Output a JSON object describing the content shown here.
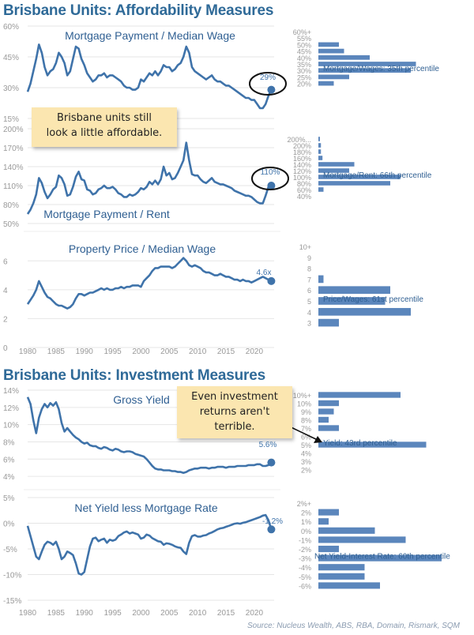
{
  "titles": {
    "affordability": "Brisbane Units: Affordability Measures",
    "investment": "Brisbane Units: Investment Measures"
  },
  "notes": {
    "affordable": "Brisbane units still\nlook a little affordable.",
    "investment": "Even investment\nreturns aren't\nterrible."
  },
  "source": "Source: Nucleus Wealth, ABS, RBA, Domain, Rismark, SQM",
  "colors": {
    "line": "#3f73aa",
    "bar": "#5b86bc",
    "title": "#2f6a98",
    "grid": "#e6e6e6",
    "axis_text": "#999999",
    "note_bg": "#fbe6b0"
  },
  "chart_data": [
    {
      "type": "line",
      "title": "Mortgage Payment / Median Wage",
      "ytick_labels": [
        "15%",
        "30%",
        "45%",
        "60%"
      ],
      "ylim": [
        15,
        60
      ],
      "x": [
        1980,
        1980.5,
        1981,
        1981.5,
        1982,
        1982.5,
        1983,
        1983.5,
        1984,
        1984.5,
        1985,
        1985.5,
        1986,
        1986.5,
        1987,
        1987.5,
        1988,
        1988.5,
        1989,
        1989.5,
        1990,
        1990.5,
        1991,
        1991.5,
        1992,
        1992.5,
        1993,
        1993.5,
        1994,
        1994.5,
        1995,
        1995.5,
        1996,
        1996.5,
        1997,
        1997.5,
        1998,
        1998.5,
        1999,
        1999.5,
        2000,
        2000.5,
        2001,
        2001.5,
        2002,
        2002.5,
        2003,
        2003.5,
        2004,
        2004.5,
        2005,
        2005.5,
        2006,
        2006.5,
        2007,
        2007.5,
        2008,
        2008.5,
        2009,
        2009.5,
        2010,
        2010.5,
        2011,
        2011.5,
        2012,
        2012.5,
        2013,
        2013.5,
        2014,
        2014.5,
        2015,
        2015.5,
        2016,
        2016.5,
        2017,
        2017.5,
        2018,
        2018.5,
        2019,
        2019.5,
        2020,
        2020.5,
        2021,
        2021.5,
        2022,
        2022.5,
        2023
      ],
      "values": [
        28,
        32,
        38,
        44,
        51,
        47,
        40,
        36,
        38,
        39,
        42,
        47,
        45,
        42,
        36,
        38,
        44,
        50,
        49,
        44,
        41,
        37,
        35,
        33,
        34,
        36,
        36,
        37,
        35,
        36,
        36,
        35,
        34,
        33,
        31,
        30,
        30,
        29,
        29,
        30,
        34,
        33,
        35,
        37,
        36,
        38,
        36,
        38,
        41,
        40,
        40,
        38,
        39,
        41,
        42,
        45,
        50,
        47,
        40,
        38,
        37,
        36,
        35,
        34,
        35,
        36,
        34,
        33,
        33,
        32,
        31,
        31,
        30,
        29,
        28,
        27,
        26,
        25,
        25,
        24,
        24,
        22,
        20,
        20,
        22,
        26,
        29
      ],
      "label": "29%"
    },
    {
      "type": "line",
      "title": "Mortgage Payment / Rent",
      "ytick_labels": [
        "50%",
        "80%",
        "110%",
        "140%",
        "170%",
        "200%"
      ],
      "ylim": [
        50,
        200
      ],
      "x": [
        1980,
        1980.5,
        1981,
        1981.5,
        1982,
        1982.5,
        1983,
        1983.5,
        1984,
        1984.5,
        1985,
        1985.5,
        1986,
        1986.5,
        1987,
        1987.5,
        1988,
        1988.5,
        1989,
        1989.5,
        1990,
        1990.5,
        1991,
        1991.5,
        1992,
        1992.5,
        1993,
        1993.5,
        1994,
        1994.5,
        1995,
        1995.5,
        1996,
        1996.5,
        1997,
        1997.5,
        1998,
        1998.5,
        1999,
        1999.5,
        2000,
        2000.5,
        2001,
        2001.5,
        2002,
        2002.5,
        2003,
        2003.5,
        2004,
        2004.5,
        2005,
        2005.5,
        2006,
        2006.5,
        2007,
        2007.5,
        2008,
        2008.5,
        2009,
        2009.5,
        2010,
        2010.5,
        2011,
        2011.5,
        2012,
        2012.5,
        2013,
        2013.5,
        2014,
        2014.5,
        2015,
        2015.5,
        2016,
        2016.5,
        2017,
        2017.5,
        2018,
        2018.5,
        2019,
        2019.5,
        2020,
        2020.5,
        2021,
        2021.5,
        2022,
        2022.5,
        2023
      ],
      "values": [
        65,
        72,
        82,
        96,
        122,
        114,
        100,
        90,
        96,
        104,
        108,
        126,
        122,
        112,
        94,
        96,
        108,
        124,
        132,
        120,
        118,
        104,
        102,
        96,
        98,
        104,
        106,
        110,
        106,
        106,
        108,
        104,
        98,
        96,
        92,
        92,
        96,
        94,
        96,
        100,
        106,
        104,
        108,
        116,
        112,
        118,
        112,
        120,
        140,
        126,
        130,
        120,
        122,
        130,
        140,
        150,
        178,
        150,
        128,
        126,
        126,
        120,
        116,
        114,
        118,
        122,
        116,
        114,
        112,
        112,
        110,
        108,
        106,
        102,
        100,
        98,
        96,
        94,
        94,
        92,
        88,
        84,
        82,
        82,
        94,
        108,
        110
      ],
      "label": "110%"
    },
    {
      "type": "line",
      "title": "Property Price / Median Wage",
      "ytick_labels": [
        "0",
        "2",
        "4",
        "6"
      ],
      "ylim": [
        0,
        7
      ],
      "x": [
        1980,
        1980.5,
        1981,
        1981.5,
        1982,
        1982.5,
        1983,
        1983.5,
        1984,
        1984.5,
        1985,
        1985.5,
        1986,
        1986.5,
        1987,
        1987.5,
        1988,
        1988.5,
        1989,
        1989.5,
        1990,
        1990.5,
        1991,
        1991.5,
        1992,
        1992.5,
        1993,
        1993.5,
        1994,
        1994.5,
        1995,
        1995.5,
        1996,
        1996.5,
        1997,
        1997.5,
        1998,
        1998.5,
        1999,
        1999.5,
        2000,
        2000.5,
        2001,
        2001.5,
        2002,
        2002.5,
        2003,
        2003.5,
        2004,
        2004.5,
        2005,
        2005.5,
        2006,
        2006.5,
        2007,
        2007.5,
        2008,
        2008.5,
        2009,
        2009.5,
        2010,
        2010.5,
        2011,
        2011.5,
        2012,
        2012.5,
        2013,
        2013.5,
        2014,
        2014.5,
        2015,
        2015.5,
        2016,
        2016.5,
        2017,
        2017.5,
        2018,
        2018.5,
        2019,
        2019.5,
        2020,
        2020.5,
        2021,
        2021.5,
        2022,
        2022.5,
        2023
      ],
      "values": [
        3.0,
        3.3,
        3.6,
        4.0,
        4.6,
        4.2,
        3.8,
        3.5,
        3.4,
        3.2,
        3.0,
        2.9,
        2.9,
        2.8,
        2.7,
        2.8,
        3.0,
        3.4,
        3.7,
        3.7,
        3.6,
        3.7,
        3.8,
        3.8,
        3.9,
        4.0,
        4.1,
        4.0,
        4.1,
        4.0,
        4.0,
        4.1,
        4.1,
        4.2,
        4.1,
        4.2,
        4.2,
        4.3,
        4.3,
        4.3,
        4.2,
        4.6,
        4.8,
        5.0,
        5.3,
        5.5,
        5.5,
        5.6,
        5.6,
        5.6,
        5.6,
        5.5,
        5.6,
        5.8,
        6.0,
        6.2,
        6.0,
        5.7,
        5.6,
        5.7,
        5.6,
        5.5,
        5.3,
        5.2,
        5.2,
        5.1,
        5.0,
        5.0,
        5.1,
        5.0,
        4.9,
        4.9,
        4.8,
        4.7,
        4.7,
        4.6,
        4.7,
        4.6,
        4.6,
        4.5,
        4.6,
        4.7,
        4.8,
        4.9,
        4.8,
        4.7,
        4.6
      ],
      "label": "4.6x"
    },
    {
      "type": "line",
      "title": "Gross Yield",
      "ytick_labels": [
        "4%",
        "6%",
        "8%",
        "10%",
        "12%",
        "14%"
      ],
      "ylim": [
        3,
        14
      ],
      "x": [
        1980,
        1980.5,
        1981,
        1981.5,
        1982,
        1982.5,
        1983,
        1983.5,
        1984,
        1984.5,
        1985,
        1985.5,
        1986,
        1986.5,
        1987,
        1987.5,
        1988,
        1988.5,
        1989,
        1989.5,
        1990,
        1990.5,
        1991,
        1991.5,
        1992,
        1992.5,
        1993,
        1993.5,
        1994,
        1994.5,
        1995,
        1995.5,
        1996,
        1996.5,
        1997,
        1997.5,
        1998,
        1998.5,
        1999,
        1999.5,
        2000,
        2000.5,
        2001,
        2001.5,
        2002,
        2002.5,
        2003,
        2003.5,
        2004,
        2004.5,
        2005,
        2005.5,
        2006,
        2006.5,
        2007,
        2007.5,
        2008,
        2008.5,
        2009,
        2009.5,
        2010,
        2010.5,
        2011,
        2011.5,
        2012,
        2012.5,
        2013,
        2013.5,
        2014,
        2014.5,
        2015,
        2015.5,
        2016,
        2016.5,
        2017,
        2017.5,
        2018,
        2018.5,
        2019,
        2019.5,
        2020,
        2020.5,
        2021,
        2021.5,
        2022,
        2022.5,
        2023
      ],
      "values": [
        13.2,
        12.4,
        10.5,
        9.0,
        10.8,
        11.8,
        12.4,
        12.0,
        12.5,
        12.2,
        12.6,
        11.8,
        10.2,
        9.2,
        9.6,
        9.2,
        8.8,
        8.5,
        8.3,
        8.0,
        7.8,
        7.9,
        7.6,
        7.5,
        7.5,
        7.3,
        7.2,
        7.4,
        7.3,
        7.1,
        7.0,
        7.2,
        7.1,
        6.9,
        6.8,
        6.9,
        6.9,
        6.8,
        6.6,
        6.5,
        6.4,
        6.3,
        6.0,
        5.6,
        5.2,
        4.9,
        4.8,
        4.8,
        4.7,
        4.7,
        4.7,
        4.6,
        4.6,
        4.5,
        4.5,
        4.4,
        4.5,
        4.7,
        4.8,
        4.9,
        4.9,
        5.0,
        5.0,
        5.0,
        4.9,
        5.0,
        5.0,
        5.1,
        5.1,
        5.1,
        5.0,
        5.1,
        5.1,
        5.1,
        5.2,
        5.2,
        5.2,
        5.2,
        5.3,
        5.3,
        5.3,
        5.4,
        5.4,
        5.2,
        5.2,
        5.3,
        5.6
      ],
      "label": "5.6%"
    },
    {
      "type": "line",
      "title": "Net Yield less Mortgage Rate",
      "xtick_labels": [
        "1980",
        "1985",
        "1990",
        "1995",
        "2000",
        "2005",
        "2010",
        "2015",
        "2020"
      ],
      "ytick_labels": [
        "-15%",
        "-10%",
        "-5%",
        "0%",
        "5%"
      ],
      "ylim": [
        -15,
        5
      ],
      "x": [
        1980,
        1980.5,
        1981,
        1981.5,
        1982,
        1982.5,
        1983,
        1983.5,
        1984,
        1984.5,
        1985,
        1985.5,
        1986,
        1986.5,
        1987,
        1987.5,
        1988,
        1988.5,
        1989,
        1989.5,
        1990,
        1990.5,
        1991,
        1991.5,
        1992,
        1992.5,
        1993,
        1993.5,
        1994,
        1994.5,
        1995,
        1995.5,
        1996,
        1996.5,
        1997,
        1997.5,
        1998,
        1998.5,
        1999,
        1999.5,
        2000,
        2000.5,
        2001,
        2001.5,
        2002,
        2002.5,
        2003,
        2003.5,
        2004,
        2004.5,
        2005,
        2005.5,
        2006,
        2006.5,
        2007,
        2007.5,
        2008,
        2008.5,
        2009,
        2009.5,
        2010,
        2010.5,
        2011,
        2011.5,
        2012,
        2012.5,
        2013,
        2013.5,
        2014,
        2014.5,
        2015,
        2015.5,
        2016,
        2016.5,
        2017,
        2017.5,
        2018,
        2018.5,
        2019,
        2019.5,
        2020,
        2020.5,
        2021,
        2021.5,
        2022,
        2022.5,
        2023
      ],
      "values": [
        -0.5,
        -2.5,
        -4.5,
        -6.5,
        -7.0,
        -5.5,
        -4.2,
        -3.6,
        -3.8,
        -4.2,
        -3.6,
        -5.0,
        -7.0,
        -6.5,
        -5.5,
        -5.8,
        -6.2,
        -7.8,
        -9.8,
        -10.0,
        -9.5,
        -7.0,
        -4.5,
        -3.0,
        -2.8,
        -3.5,
        -3.2,
        -3.0,
        -3.8,
        -3.2,
        -3.4,
        -3.2,
        -2.5,
        -2.2,
        -1.8,
        -1.6,
        -2.0,
        -1.8,
        -2.0,
        -2.2,
        -3.0,
        -2.8,
        -2.2,
        -2.4,
        -2.9,
        -3.2,
        -3.5,
        -3.6,
        -4.2,
        -3.9,
        -4.0,
        -4.2,
        -4.5,
        -4.7,
        -4.8,
        -5.5,
        -6.0,
        -3.8,
        -2.5,
        -2.3,
        -2.6,
        -2.6,
        -2.4,
        -2.3,
        -2.0,
        -1.8,
        -1.5,
        -1.2,
        -1.0,
        -0.9,
        -0.7,
        -0.5,
        -0.3,
        -0.1,
        0.0,
        -0.1,
        0.1,
        0.2,
        0.4,
        0.6,
        0.8,
        1.0,
        1.2,
        1.5,
        1.6,
        0.6,
        -1.2
      ],
      "label": "-1.2%"
    }
  ],
  "histograms": [
    {
      "caption": "Mortgage/Wages: 35th percentile",
      "categories": [
        "60%+",
        "55%",
        "50%",
        "45%",
        "40%",
        "35%",
        "30%",
        "25%",
        "20%"
      ],
      "values": [
        0,
        0,
        4,
        5,
        10,
        19,
        18,
        6,
        3
      ]
    },
    {
      "caption": "Mortgage/Rent: 66th percentile",
      "categories": [
        "200%...",
        "200%",
        "180%",
        "160%",
        "140%",
        "120%",
        "100%",
        "80%",
        "60%",
        "40%"
      ],
      "values": [
        0.3,
        0.5,
        0.5,
        0.8,
        7,
        6,
        16,
        14,
        1,
        0
      ]
    },
    {
      "caption": "Price/Wages: 61st percentile",
      "categories": [
        "10+",
        "9",
        "8",
        "7",
        "6",
        "5",
        "4",
        "3"
      ],
      "values": [
        0,
        0,
        0,
        1,
        14,
        13,
        18,
        4
      ]
    },
    {
      "caption": "Yield: 43rd percentile",
      "categories": [
        "10%+",
        "10%",
        "9%",
        "8%",
        "7%",
        "6%",
        "5%",
        "4%",
        "3%",
        "2%"
      ],
      "values": [
        16,
        4,
        3,
        2,
        4,
        0,
        21,
        0,
        0,
        0
      ]
    },
    {
      "caption": "Net Yield-Interest Rate: 60th percentile",
      "categories": [
        "2%+",
        "2%",
        "1%",
        "0%",
        "-1%",
        "-2%",
        "-3%",
        "-4%",
        "-5%",
        "-6%"
      ],
      "values": [
        0,
        4,
        2,
        11,
        17,
        4,
        24,
        9,
        9,
        12
      ]
    }
  ]
}
